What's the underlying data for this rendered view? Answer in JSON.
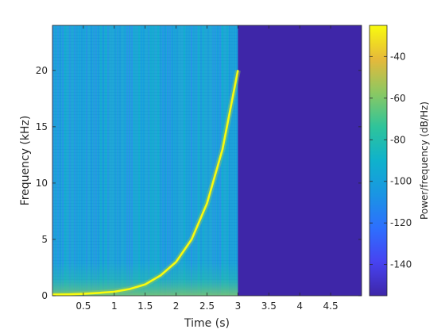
{
  "chart_data": {
    "type": "heatmap",
    "title": "",
    "xlabel": "Time (s)",
    "ylabel": "Frequency (kHz)",
    "xlim": [
      0,
      5
    ],
    "ylim": [
      0,
      24
    ],
    "x_ticks": [
      0.5,
      1,
      1.5,
      2,
      2.5,
      3,
      3.5,
      4,
      4.5
    ],
    "x_tick_labels": [
      "0.5",
      "1",
      "1.5",
      "2",
      "2.5",
      "3",
      "3.5",
      "4",
      "4.5"
    ],
    "y_ticks": [
      0,
      5,
      10,
      15,
      20
    ],
    "y_tick_labels": [
      "0",
      "5",
      "10",
      "15",
      "20"
    ],
    "signal_end_time": 3,
    "chirp": {
      "t": [
        0,
        0.25,
        0.5,
        0.75,
        1.0,
        1.25,
        1.5,
        1.75,
        2.0,
        2.25,
        2.5,
        2.75,
        3.0
      ],
      "f_khz": [
        0.1,
        0.12,
        0.17,
        0.25,
        0.35,
        0.6,
        1.0,
        1.8,
        3.0,
        5.0,
        8.2,
        13.0,
        20.0
      ]
    },
    "colorbar": {
      "label": "Power/frequency (dB/Hz)",
      "range": [
        -155,
        -25
      ],
      "ticks": [
        -140,
        -120,
        -100,
        -80,
        -60,
        -40
      ],
      "tick_labels": [
        "-140",
        "-120",
        "-100",
        "-80",
        "-60",
        "-40"
      ],
      "colormap": "parula"
    },
    "colors": {
      "background_level": "#1fa6d6",
      "empty_region": "#3e26a8",
      "chirp": "#f9fb0e"
    }
  }
}
